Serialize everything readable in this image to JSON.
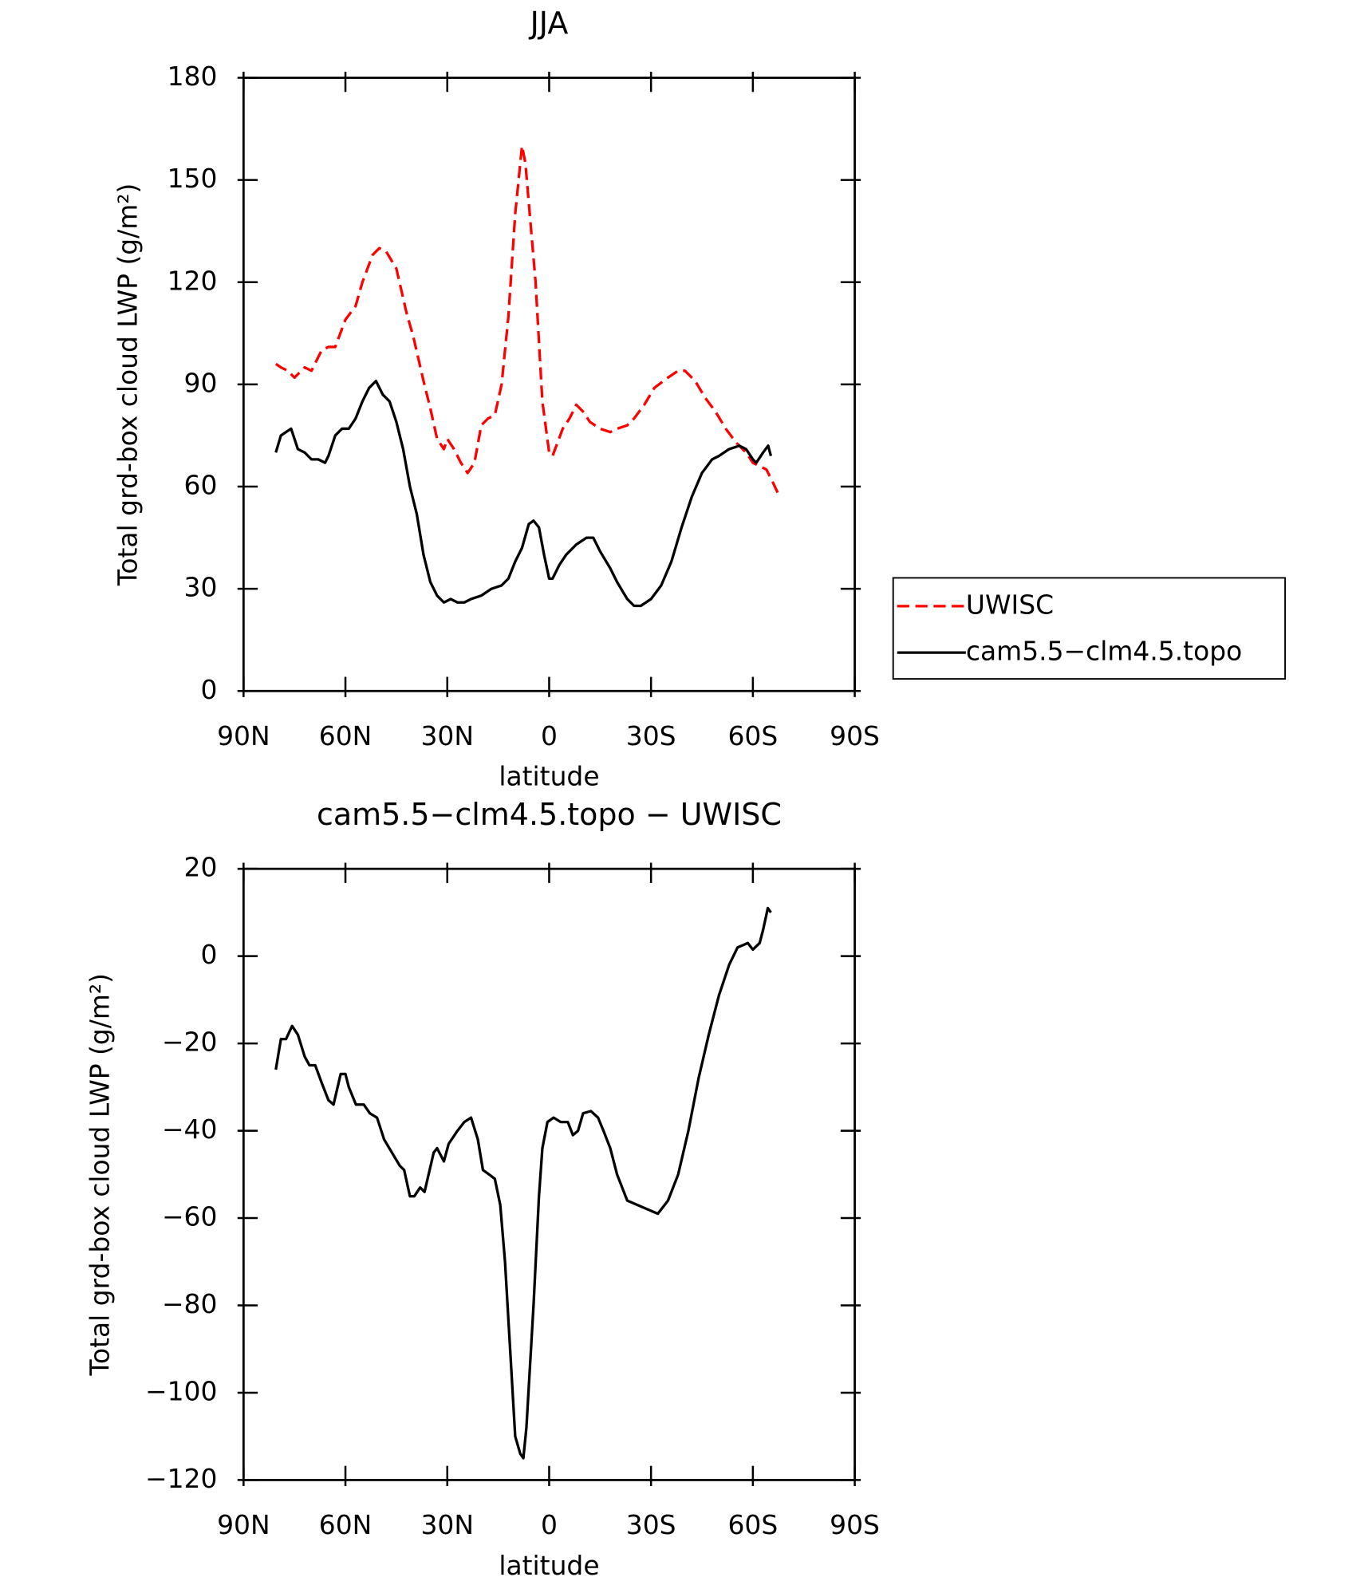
{
  "chart_data": [
    {
      "type": "line",
      "title": "JJA",
      "xlabel": "latitude",
      "ylabel": "Total grd-box cloud LWP (g/m²)",
      "xlim": [
        90,
        -90
      ],
      "xticks": [
        {
          "value": 90,
          "label": "90N"
        },
        {
          "value": 60,
          "label": "60N"
        },
        {
          "value": 30,
          "label": "30N"
        },
        0,
        {
          "value": -30,
          "label": "30S"
        },
        {
          "value": -60,
          "label": "60S"
        },
        {
          "value": -90,
          "label": "90S"
        }
      ],
      "ylim": [
        0,
        180
      ],
      "yticks": [
        0,
        30,
        60,
        90,
        120,
        150,
        180
      ],
      "legend": "right",
      "series": [
        {
          "name": "UWISC",
          "color": "#ff0000",
          "dashed": true,
          "x": [
            80.5,
            79,
            77,
            75,
            72,
            70,
            67,
            65,
            63,
            60,
            57,
            55,
            52,
            50,
            48,
            45,
            42,
            40,
            37,
            35,
            33,
            31,
            30,
            28,
            26,
            24,
            22,
            20,
            18,
            16,
            14,
            12,
            10,
            8,
            7,
            4,
            2,
            0,
            -1,
            -4,
            -6,
            -8,
            -10,
            -12,
            -15,
            -18,
            -20,
            -23,
            -25,
            -28,
            -31,
            -35,
            -38,
            -40,
            -43,
            -46,
            -49,
            -52,
            -55,
            -58,
            -60,
            -62,
            -64,
            -66,
            -67.4
          ],
          "values": [
            96,
            95,
            94,
            92,
            95,
            94,
            100,
            101,
            101,
            109,
            113,
            120,
            128,
            130,
            129,
            124,
            111,
            104,
            91,
            83,
            74,
            71,
            74,
            71,
            67,
            64,
            67,
            78,
            80,
            81,
            90,
            110,
            140,
            160,
            155,
            120,
            85,
            70,
            69,
            77,
            80,
            84,
            82,
            79,
            77,
            76,
            77,
            78,
            80,
            84,
            89,
            92,
            94,
            94,
            91,
            86,
            82,
            77,
            73,
            70,
            67,
            66,
            65,
            61,
            58
          ]
        },
        {
          "name": "cam5.5−clm4.5.topo",
          "color": "#000000",
          "dashed": false,
          "x": [
            80.5,
            79,
            76,
            74,
            72,
            70,
            68,
            66,
            65,
            63,
            61,
            59,
            57,
            55,
            53,
            51,
            49,
            47,
            45,
            43,
            41,
            39,
            37,
            35,
            33,
            31,
            29,
            27,
            25,
            23,
            20,
            17,
            14,
            12,
            10,
            8,
            6,
            4.6,
            3,
            1.5,
            0,
            -1,
            -3,
            -5,
            -8,
            -11,
            -13,
            -15,
            -18,
            -20,
            -23,
            -25,
            -27,
            -30,
            -33,
            -36,
            -39,
            -42,
            -45,
            -48,
            -50,
            -53,
            -56,
            -58,
            -60,
            -61,
            -63,
            -64.5,
            -65.3
          ],
          "values": [
            70,
            75,
            77,
            71,
            70,
            68,
            68,
            67,
            69,
            75,
            77,
            77,
            80,
            85,
            89,
            91,
            87,
            85,
            79,
            71,
            60,
            52,
            40,
            32,
            28,
            26,
            27,
            26,
            26,
            27,
            28,
            30,
            31,
            33,
            38,
            42,
            49,
            50,
            48,
            40,
            33,
            33,
            37,
            40,
            43,
            45,
            45,
            41,
            36,
            32,
            27,
            25,
            25,
            27,
            31,
            38,
            48,
            57,
            64,
            68,
            69,
            71,
            72,
            71,
            68,
            67,
            70,
            72,
            69
          ]
        }
      ]
    },
    {
      "type": "line",
      "title": "cam5.5−clm4.5.topo − UWISC",
      "xlabel": "latitude",
      "ylabel": "Total grd-box cloud LWP (g/m²)",
      "xlim": [
        90,
        -90
      ],
      "xticks": [
        {
          "value": 90,
          "label": "90N"
        },
        {
          "value": 60,
          "label": "60N"
        },
        {
          "value": 30,
          "label": "30N"
        },
        0,
        {
          "value": -30,
          "label": "30S"
        },
        {
          "value": -60,
          "label": "60S"
        },
        {
          "value": -90,
          "label": "90S"
        }
      ],
      "ylim": [
        -120,
        20
      ],
      "yticks": [
        {
          "value": -120,
          "label": "−120"
        },
        {
          "value": -100,
          "label": "−100"
        },
        {
          "value": -80,
          "label": "−80"
        },
        {
          "value": -60,
          "label": "−60"
        },
        {
          "value": -40,
          "label": "−40"
        },
        {
          "value": -20,
          "label": "−20"
        },
        0,
        20
      ],
      "color": "#000000",
      "x": [
        80.5,
        79,
        77.5,
        75.7,
        74,
        72,
        70.6,
        68.9,
        67,
        65,
        63.5,
        61.4,
        60,
        59,
        56.9,
        54.6,
        52.8,
        50.7,
        48.6,
        46.3,
        44,
        42.7,
        41,
        39.7,
        38,
        36.7,
        34,
        33,
        31,
        29.6,
        27,
        25,
        23,
        21,
        19.5,
        17.7,
        16,
        14.4,
        13,
        10,
        8.5,
        7.6,
        6.7,
        4.6,
        3,
        2,
        0.5,
        -1.3,
        -3.4,
        -5.5,
        -7,
        -8.5,
        -10,
        -12.3,
        -14.4,
        -16,
        -18,
        -20,
        -23,
        -26,
        -29,
        -32,
        -35,
        -38,
        -41,
        -44,
        -47,
        -50,
        -53,
        -55.5,
        -58.5,
        -60,
        -62,
        -63,
        -64.4,
        -65.3
      ],
      "values": [
        -26,
        -19,
        -19,
        -16,
        -18,
        -23,
        -25,
        -25,
        -29,
        -33,
        -34,
        -27,
        -27,
        -30,
        -34,
        -34,
        -36,
        -37,
        -42,
        -45,
        -48,
        -49,
        -55,
        -55,
        -53,
        -54,
        -45,
        -44,
        -47,
        -43,
        -40,
        -38,
        -37,
        -42,
        -49,
        -50,
        -51,
        -57,
        -70,
        -110,
        -114,
        -115,
        -108,
        -80,
        -55,
        -44,
        -38,
        -37,
        -38,
        -38,
        -41,
        -40,
        -36,
        -35.5,
        -37,
        -40,
        -44,
        -50,
        -56,
        -57,
        -58,
        -59,
        -56,
        -50,
        -40,
        -28,
        -18,
        -9,
        -2,
        2,
        3,
        1.5,
        3,
        6,
        11,
        10
      ]
    }
  ]
}
